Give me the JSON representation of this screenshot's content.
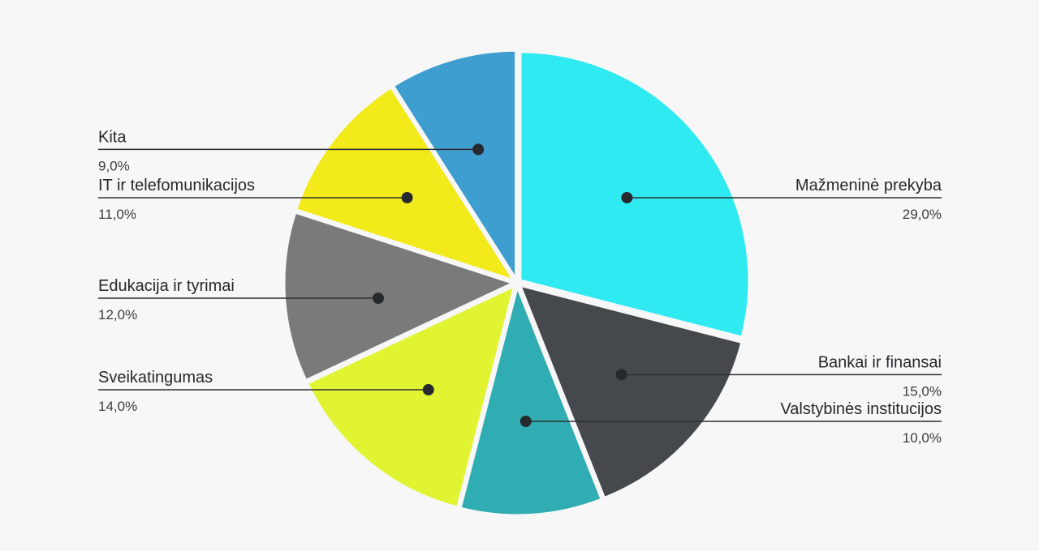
{
  "chart_data": {
    "type": "pie",
    "title": "",
    "slices": [
      {
        "label": "Mažmeninė prekyba",
        "value": 29.0,
        "display": "29,0%",
        "color": "#30eaf2"
      },
      {
        "label": "Bankai ir finansai",
        "value": 15.0,
        "display": "15,0%",
        "color": "#45484d"
      },
      {
        "label": "Valstybinės institucijos",
        "value": 10.0,
        "display": "10,0%",
        "color": "#30adb3"
      },
      {
        "label": "Sveikatingumas",
        "value": 14.0,
        "display": "14,0%",
        "color": "#e0f432"
      },
      {
        "label": "Edukacija ir tyrimai",
        "value": 12.0,
        "display": "12,0%",
        "color": "#7a7a7a"
      },
      {
        "label": "IT ir telefomunikacijos",
        "value": 11.0,
        "display": "11,0%",
        "color": "#f2ea1b"
      },
      {
        "label": "Kita",
        "value": 9.0,
        "display": "9,0%",
        "color": "#3e9ecf"
      }
    ],
    "legend": "callout labels beside the slices"
  }
}
